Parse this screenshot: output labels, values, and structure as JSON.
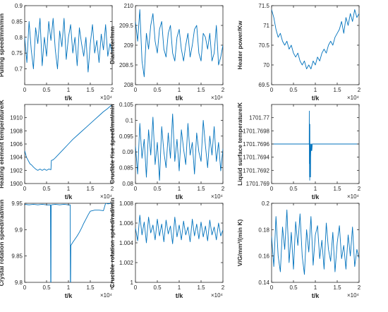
{
  "figure": {
    "background": "#ffffff",
    "axis_color": "#262626",
    "series_color": "#0072BD"
  },
  "chart_data": [
    {
      "id": "pulling-speed",
      "type": "line",
      "xlabel": "t/k",
      "ylabel": "Pulling speed/mm/min",
      "xlim": [
        0,
        20000
      ],
      "ylim": [
        0.65,
        0.9
      ],
      "x_ticks": [
        "0",
        "0.5",
        "1",
        "1.5",
        "2"
      ],
      "x_multiplier": "×10⁴",
      "y_ticks": [
        "0.7",
        "0.75",
        "0.8",
        "0.85",
        "0.9"
      ],
      "y_tick_values": [
        0.7,
        0.75,
        0.8,
        0.85,
        0.9
      ],
      "x": [
        0,
        500,
        1000,
        1500,
        2000,
        2500,
        3000,
        3500,
        4000,
        4500,
        5000,
        5500,
        6000,
        6500,
        7000,
        7500,
        8000,
        8500,
        9000,
        9500,
        10000,
        10500,
        11000,
        11500,
        12000,
        12500,
        13000,
        13500,
        14000,
        14500,
        15000,
        15500,
        16000,
        16500,
        17000,
        17500,
        18000,
        18500,
        19000,
        19500,
        20000
      ],
      "values": [
        0.8,
        0.72,
        0.85,
        0.76,
        0.7,
        0.83,
        0.78,
        0.86,
        0.71,
        0.8,
        0.74,
        0.85,
        0.79,
        0.86,
        0.76,
        0.7,
        0.82,
        0.77,
        0.86,
        0.73,
        0.8,
        0.84,
        0.75,
        0.8,
        0.71,
        0.83,
        0.78,
        0.74,
        0.8,
        0.69,
        0.78,
        0.84,
        0.75,
        0.79,
        0.72,
        0.81,
        0.76,
        0.84,
        0.74,
        0.78,
        0.75
      ]
    },
    {
      "id": "diameter",
      "type": "line",
      "xlabel": "t/k",
      "ylabel": "Diameter/mm",
      "xlim": [
        0,
        20000
      ],
      "ylim": [
        208,
        210
      ],
      "x_ticks": [
        "0",
        "0.5",
        "1",
        "1.5",
        "2"
      ],
      "x_multiplier": "×10⁴",
      "y_ticks": [
        "208",
        "208.5",
        "209",
        "209.5",
        "210"
      ],
      "y_tick_values": [
        208,
        208.5,
        209,
        209.5,
        210
      ],
      "x": [
        0,
        500,
        1000,
        1500,
        2000,
        2500,
        3000,
        3500,
        4000,
        4500,
        5000,
        5500,
        6000,
        6500,
        7000,
        7500,
        8000,
        8500,
        9000,
        9500,
        10000,
        10500,
        11000,
        11500,
        12000,
        12500,
        13000,
        13500,
        14000,
        14500,
        15000,
        15500,
        16000,
        16500,
        17000,
        17500,
        18000,
        18500,
        19000,
        19500,
        20000
      ],
      "values": [
        209.6,
        209.1,
        209.9,
        208.6,
        208.2,
        209.3,
        208.9,
        209.5,
        209.8,
        209.1,
        208.8,
        209.4,
        209.6,
        208.9,
        208.7,
        209.3,
        209.5,
        208.8,
        208.6,
        209.2,
        209.4,
        208.9,
        208.6,
        209.0,
        209.3,
        208.7,
        209.0,
        209.4,
        209.5,
        208.8,
        208.6,
        209.3,
        209.2,
        208.9,
        209.3,
        208.6,
        208.8,
        209.5,
        208.5,
        208.7,
        209.0
      ]
    },
    {
      "id": "heater-power",
      "type": "line",
      "xlabel": "t/k",
      "ylabel": "Heater power/Kw",
      "xlim": [
        0,
        20000
      ],
      "ylim": [
        69.5,
        71.5
      ],
      "x_ticks": [
        "0",
        "0.5",
        "1",
        "1.5",
        "2"
      ],
      "x_multiplier": "×10⁴",
      "y_ticks": [
        "69.5",
        "70",
        "70.5",
        "71",
        "71.5"
      ],
      "y_tick_values": [
        69.5,
        70,
        70.5,
        71,
        71.5
      ],
      "x": [
        0,
        500,
        1000,
        1500,
        2000,
        2500,
        3000,
        3500,
        4000,
        4500,
        5000,
        5500,
        6000,
        6500,
        7000,
        7500,
        8000,
        8500,
        9000,
        9500,
        10000,
        10500,
        11000,
        11500,
        12000,
        12500,
        13000,
        13500,
        14000,
        14500,
        15000,
        15500,
        16000,
        16500,
        17000,
        17500,
        18000,
        18500,
        19000,
        19500,
        20000
      ],
      "values": [
        71.4,
        71.2,
        70.9,
        70.7,
        70.8,
        70.6,
        70.5,
        70.6,
        70.4,
        70.5,
        70.3,
        70.2,
        70.3,
        70.1,
        70.0,
        70.1,
        69.9,
        70.0,
        69.9,
        70.1,
        70.0,
        70.2,
        70.1,
        70.3,
        70.4,
        70.3,
        70.5,
        70.6,
        70.5,
        70.7,
        70.8,
        70.9,
        71.1,
        70.8,
        71.2,
        71.0,
        71.3,
        71.1,
        71.4,
        71.2,
        71.3
      ]
    },
    {
      "id": "heating-element-temperature",
      "type": "line",
      "xlabel": "t/k",
      "ylabel": "Heating element temperature/K",
      "xlim": [
        0,
        20000
      ],
      "ylim": [
        1900,
        1912
      ],
      "x_ticks": [
        "0",
        "0.5",
        "1",
        "1.5",
        "2"
      ],
      "x_multiplier": "×10⁴",
      "y_ticks": [
        "1900",
        "1902",
        "1904",
        "1906",
        "1908",
        "1910"
      ],
      "y_tick_values": [
        1900,
        1902,
        1904,
        1906,
        1908,
        1910
      ],
      "x": [
        0,
        400,
        800,
        1200,
        1600,
        2000,
        2500,
        3000,
        3500,
        4000,
        4500,
        5000,
        5500,
        6000,
        6100,
        6500,
        7000,
        8000,
        9000,
        10000,
        11000,
        12000,
        13000,
        14000,
        15000,
        16000,
        17000,
        18000,
        19000,
        20000
      ],
      "values": [
        1905.0,
        1904.0,
        1903.5,
        1903.0,
        1902.8,
        1902.5,
        1902.2,
        1902.0,
        1902.2,
        1902.0,
        1902.2,
        1902.0,
        1902.2,
        1902.1,
        1903.5,
        1903.6,
        1903.9,
        1904.6,
        1905.3,
        1906.0,
        1906.7,
        1907.3,
        1907.9,
        1908.5,
        1909.1,
        1909.7,
        1910.3,
        1910.9,
        1911.4,
        1912.0
      ]
    },
    {
      "id": "crucible-rise-speed",
      "type": "line",
      "xlabel": "t/k",
      "ylabel": "Crucible rise speed/mm/min",
      "xlim": [
        0,
        20000
      ],
      "ylim": [
        0.08,
        0.105
      ],
      "x_ticks": [
        "0",
        "0.5",
        "1",
        "1.5",
        "2"
      ],
      "x_multiplier": "×10⁴",
      "y_ticks": [
        "0.08",
        "0.085",
        "0.09",
        "0.095",
        "0.1",
        "0.105"
      ],
      "y_tick_values": [
        0.08,
        0.085,
        0.09,
        0.095,
        0.1,
        0.105
      ],
      "x": [
        0,
        500,
        1000,
        1500,
        2000,
        2500,
        3000,
        3500,
        4000,
        4500,
        5000,
        5500,
        6000,
        6500,
        7000,
        7500,
        8000,
        8500,
        9000,
        9500,
        10000,
        10500,
        11000,
        11500,
        12000,
        12500,
        13000,
        13500,
        14000,
        14500,
        15000,
        15500,
        16000,
        16500,
        17000,
        17500,
        18000,
        18500,
        19000,
        19500,
        20000
      ],
      "values": [
        0.092,
        0.083,
        0.099,
        0.088,
        0.094,
        0.082,
        0.097,
        0.089,
        0.101,
        0.086,
        0.093,
        0.081,
        0.098,
        0.09,
        0.085,
        0.096,
        0.088,
        0.102,
        0.087,
        0.094,
        0.084,
        0.097,
        0.091,
        0.086,
        0.099,
        0.089,
        0.093,
        0.083,
        0.096,
        0.09,
        0.087,
        0.1,
        0.092,
        0.085,
        0.095,
        0.089,
        0.098,
        0.087,
        0.093,
        0.084,
        0.091
      ]
    },
    {
      "id": "liquid-surface-temperature",
      "type": "line",
      "xlabel": "t/k",
      "ylabel": "Liquid surface temperature/K",
      "xlim": [
        0,
        20000
      ],
      "ylim": [
        1701.769,
        1701.7702
      ],
      "x_ticks": [
        "0",
        "0.5",
        "1",
        "1.5",
        "2"
      ],
      "x_multiplier": "×10⁴",
      "y_ticks": [
        "1701.769",
        "1701.7692",
        "1701.7694",
        "1701.7696",
        "1701.7698",
        "1701.77"
      ],
      "y_tick_values": [
        1701.769,
        1701.7692,
        1701.7694,
        1701.7696,
        1701.7698,
        1701.77
      ],
      "x": [
        0,
        8600,
        8620,
        8640,
        8660,
        8680,
        8700,
        8720,
        8740,
        8760,
        8780,
        8800,
        8820,
        8840,
        8860,
        8880,
        8900,
        8920,
        9000,
        9050,
        9100,
        9200,
        9300,
        20000
      ],
      "values": [
        1701.7696,
        1701.7696,
        1701.7701,
        1701.7693,
        1701.7698,
        1701.7691,
        1701.7695,
        1701.76905,
        1701.7699,
        1701.7692,
        1701.7694,
        1701.7691,
        1701.7696,
        1701.7693,
        1701.7692,
        1701.7695,
        1701.7691,
        1701.7694,
        1701.7696,
        1701.7695,
        1701.7696,
        1701.7695,
        1701.7696,
        1701.7696
      ]
    },
    {
      "id": "crystal-rotation-speed",
      "type": "line",
      "xlabel": "t/k",
      "ylabel": "Crystal rotation speed/rad/min",
      "xlim": [
        0,
        20000
      ],
      "ylim": [
        9.8,
        9.95
      ],
      "x_ticks": [
        "0",
        "0.5",
        "1",
        "1.5",
        "2"
      ],
      "x_multiplier": "×10⁴",
      "y_ticks": [
        "9.8",
        "9.85",
        "9.9",
        "9.95"
      ],
      "y_tick_values": [
        9.8,
        9.85,
        9.9,
        9.95
      ],
      "x": [
        0,
        1000,
        2000,
        3000,
        4000,
        5000,
        5900,
        5950,
        6000,
        6050,
        6100,
        7000,
        8000,
        9000,
        10000,
        10400,
        10450,
        10500,
        10550,
        10700,
        11000,
        11500,
        12000,
        12500,
        13000,
        13500,
        14000,
        14500,
        15000,
        16000,
        17000,
        18000,
        18500,
        19000,
        20000
      ],
      "values": [
        9.948,
        9.947,
        9.948,
        9.947,
        9.948,
        9.947,
        9.947,
        9.8,
        9.8,
        9.946,
        9.947,
        9.948,
        9.947,
        9.948,
        9.947,
        9.947,
        9.8,
        9.8,
        9.87,
        9.872,
        9.876,
        9.882,
        9.888,
        9.895,
        9.903,
        9.912,
        9.92,
        9.928,
        9.935,
        9.937,
        9.937,
        9.936,
        9.95,
        9.949,
        9.95
      ]
    },
    {
      "id": "crucible-rotation-speed",
      "type": "line",
      "xlabel": "t/k",
      "ylabel": "Crucible rotation speed/rad/min",
      "xlim": [
        0,
        20000
      ],
      "ylim": [
        1,
        1.008
      ],
      "x_ticks": [
        "0",
        "0.5",
        "1",
        "1.5",
        "2"
      ],
      "x_multiplier": "×10⁴",
      "y_ticks": [
        "1",
        "1.002",
        "1.004",
        "1.006",
        "1.008"
      ],
      "y_tick_values": [
        1,
        1.002,
        1.004,
        1.006,
        1.008
      ],
      "x": [
        0,
        500,
        1000,
        1500,
        2000,
        2500,
        3000,
        3500,
        4000,
        4500,
        5000,
        5500,
        6000,
        6500,
        7000,
        7500,
        8000,
        8500,
        9000,
        9500,
        10000,
        10500,
        11000,
        11500,
        12000,
        12500,
        13000,
        13500,
        14000,
        14500,
        15000,
        15500,
        16000,
        16500,
        17000,
        17500,
        18000,
        18500,
        19000,
        19500,
        20000
      ],
      "values": [
        1.0055,
        1.0042,
        1.0068,
        1.0048,
        1.0061,
        1.004,
        1.0066,
        1.005,
        1.0058,
        1.0043,
        1.0064,
        1.0047,
        1.0059,
        1.0041,
        1.0063,
        1.0049,
        1.0057,
        1.0039,
        1.0066,
        1.0046,
        1.0058,
        1.0043,
        1.0062,
        1.0048,
        1.0056,
        1.0041,
        1.0064,
        1.0047,
        1.0059,
        1.0044,
        1.0061,
        1.0046,
        1.0057,
        1.0042,
        1.0063,
        1.0048,
        1.0056,
        1.0043,
        1.006,
        1.0047,
        1.0053
      ]
    },
    {
      "id": "vg-ratio",
      "type": "line",
      "xlabel": "t/k",
      "ylabel": "V/G/mm²/(min K)",
      "xlim": [
        0,
        20000
      ],
      "ylim": [
        0.14,
        0.2
      ],
      "x_ticks": [
        "0",
        "0.5",
        "1",
        "1.5",
        "2"
      ],
      "x_multiplier": "×10⁴",
      "y_ticks": [
        "0.14",
        "0.16",
        "0.18",
        "0.2"
      ],
      "y_tick_values": [
        0.14,
        0.16,
        0.18,
        0.2
      ],
      "x": [
        0,
        500,
        1000,
        1500,
        2000,
        2500,
        3000,
        3500,
        4000,
        4500,
        5000,
        5500,
        6000,
        6500,
        7000,
        7500,
        8000,
        8500,
        9000,
        9500,
        10000,
        10500,
        11000,
        11500,
        12000,
        12500,
        13000,
        13500,
        14000,
        14500,
        15000,
        15500,
        16000,
        16500,
        17000,
        17500,
        18000,
        18500,
        19000,
        19500,
        20000
      ],
      "values": [
        0.175,
        0.152,
        0.19,
        0.16,
        0.148,
        0.182,
        0.165,
        0.195,
        0.155,
        0.178,
        0.15,
        0.186,
        0.168,
        0.192,
        0.16,
        0.146,
        0.18,
        0.163,
        0.19,
        0.153,
        0.176,
        0.183,
        0.158,
        0.172,
        0.15,
        0.185,
        0.165,
        0.156,
        0.178,
        0.148,
        0.17,
        0.183,
        0.158,
        0.168,
        0.15,
        0.176,
        0.16,
        0.182,
        0.152,
        0.165,
        0.158
      ]
    }
  ]
}
